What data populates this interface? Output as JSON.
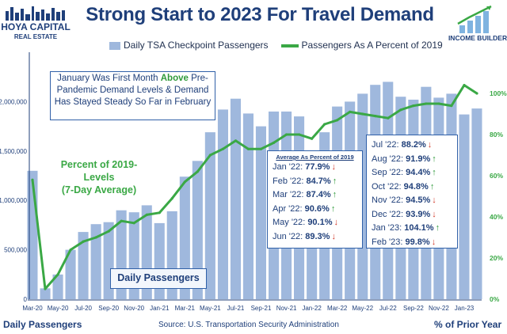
{
  "branding": {
    "left_logo_line1": "HOYA CAPITAL",
    "left_logo_line2": "REAL ESTATE",
    "right_logo": "INCOME BUILDER"
  },
  "colors": {
    "title": "#1f3f7a",
    "bars": "#9fb8dd",
    "line": "#3aa845",
    "arrow_up": "#2f9a3a",
    "arrow_down": "#d23a2a",
    "box_border": "#3060a8"
  },
  "annotations": {
    "note_pre": "January Was First Month ",
    "note_emph": "Above",
    "note_post": " Pre-Pandemic Demand Levels & Demand Has Stayed Steady So Far in February",
    "pct_label_1": "Percent of 2019-Levels",
    "pct_label_2": "(7-Day Average)",
    "daily_box": "Daily Passengers",
    "avg_box_title": "Average As Percent of 2019"
  },
  "monthly_percent": [
    {
      "month": "Jan '22",
      "value": "77.9%",
      "trend": "down"
    },
    {
      "month": "Feb '22",
      "value": "84.7%",
      "trend": "up"
    },
    {
      "month": "Mar '22",
      "value": "87.4%",
      "trend": "up"
    },
    {
      "month": "Apr '22",
      "value": "90.6%",
      "trend": "up"
    },
    {
      "month": "May '22",
      "value": "90.1%",
      "trend": "down"
    },
    {
      "month": "Jun '22",
      "value": "89.3%",
      "trend": "down"
    },
    {
      "month": "Jul '22",
      "value": "88.2%",
      "trend": "down"
    },
    {
      "month": "Aug '22",
      "value": "91.9%",
      "trend": "up"
    },
    {
      "month": "Sep '22",
      "value": "94.4%",
      "trend": "up"
    },
    {
      "month": "Oct '22",
      "value": "94.8%",
      "trend": "up"
    },
    {
      "month": "Nov '22",
      "value": "94.5%",
      "trend": "down"
    },
    {
      "month": "Dec '22",
      "value": "93.9%",
      "trend": "down"
    },
    {
      "month": "Jan '23",
      "value": "104.1%",
      "trend": "up"
    },
    {
      "month": "Feb '23",
      "value": "99.8%",
      "trend": "down"
    }
  ],
  "footer": {
    "left": "Daily Passengers",
    "source": "Source: U.S. Transportation Security Administration",
    "right": "% of Prior Year"
  },
  "chart_data": {
    "type": "bar",
    "title": "Strong Start to 2023 For Travel Demand",
    "legend_position": "top",
    "grid": false,
    "xlabel": "",
    "ylabel": "Daily Passengers",
    "y2label": "% of Prior Year",
    "ylim": [
      0,
      2500000
    ],
    "y2lim": [
      0,
      120
    ],
    "yticks": [
      "0",
      "500,000",
      "1,000,000",
      "1,500,000",
      "2,000,000"
    ],
    "y2ticks": [
      "0%",
      "20%",
      "40%",
      "60%",
      "80%",
      "100%"
    ],
    "x": [
      "Mar-20",
      "Apr-20",
      "May-20",
      "Jun-20",
      "Jul-20",
      "Aug-20",
      "Sep-20",
      "Oct-20",
      "Nov-20",
      "Dec-20",
      "Jan-21",
      "Feb-21",
      "Mar-21",
      "Apr-21",
      "May-21",
      "Jun-21",
      "Jul-21",
      "Aug-21",
      "Sep-21",
      "Oct-21",
      "Nov-21",
      "Dec-21",
      "Jan-22",
      "Feb-22",
      "Mar-22",
      "Apr-22",
      "May-22",
      "Jun-22",
      "Jul-22",
      "Aug-22",
      "Sep-22",
      "Oct-22",
      "Nov-22",
      "Dec-22",
      "Jan-23",
      "Feb-23"
    ],
    "xtick_labels": [
      "Mar-20",
      "May-20",
      "Jul-20",
      "Sep-20",
      "Nov-20",
      "Jan-21",
      "Mar-21",
      "May-21",
      "Jul-21",
      "Sep-21",
      "Nov-21",
      "Jan-22",
      "Mar-22",
      "May-22",
      "Jul-22",
      "Sep-22",
      "Nov-22",
      "Jan-23"
    ],
    "series": [
      {
        "name": "Daily TSA Checkpoint Passengers",
        "type": "bar",
        "axis": "left",
        "values": [
          1300000,
          110000,
          250000,
          500000,
          680000,
          760000,
          780000,
          900000,
          880000,
          950000,
          770000,
          890000,
          1240000,
          1400000,
          1690000,
          1920000,
          2030000,
          1880000,
          1750000,
          1900000,
          1900000,
          1850000,
          1440000,
          1690000,
          1950000,
          2000000,
          2080000,
          2170000,
          2200000,
          2050000,
          2020000,
          2150000,
          2040000,
          2080000,
          1870000,
          1930000
        ]
      },
      {
        "name": "Passengers As A Percent of 2019",
        "type": "line",
        "axis": "right",
        "values": [
          58,
          5,
          12,
          24,
          28,
          30,
          33,
          38,
          37,
          41,
          42,
          49,
          57,
          62,
          70,
          73,
          77,
          73,
          73,
          76,
          80,
          80,
          78,
          85,
          87,
          91,
          90,
          89,
          88,
          92,
          94,
          95,
          95,
          94,
          104,
          100
        ]
      }
    ]
  }
}
